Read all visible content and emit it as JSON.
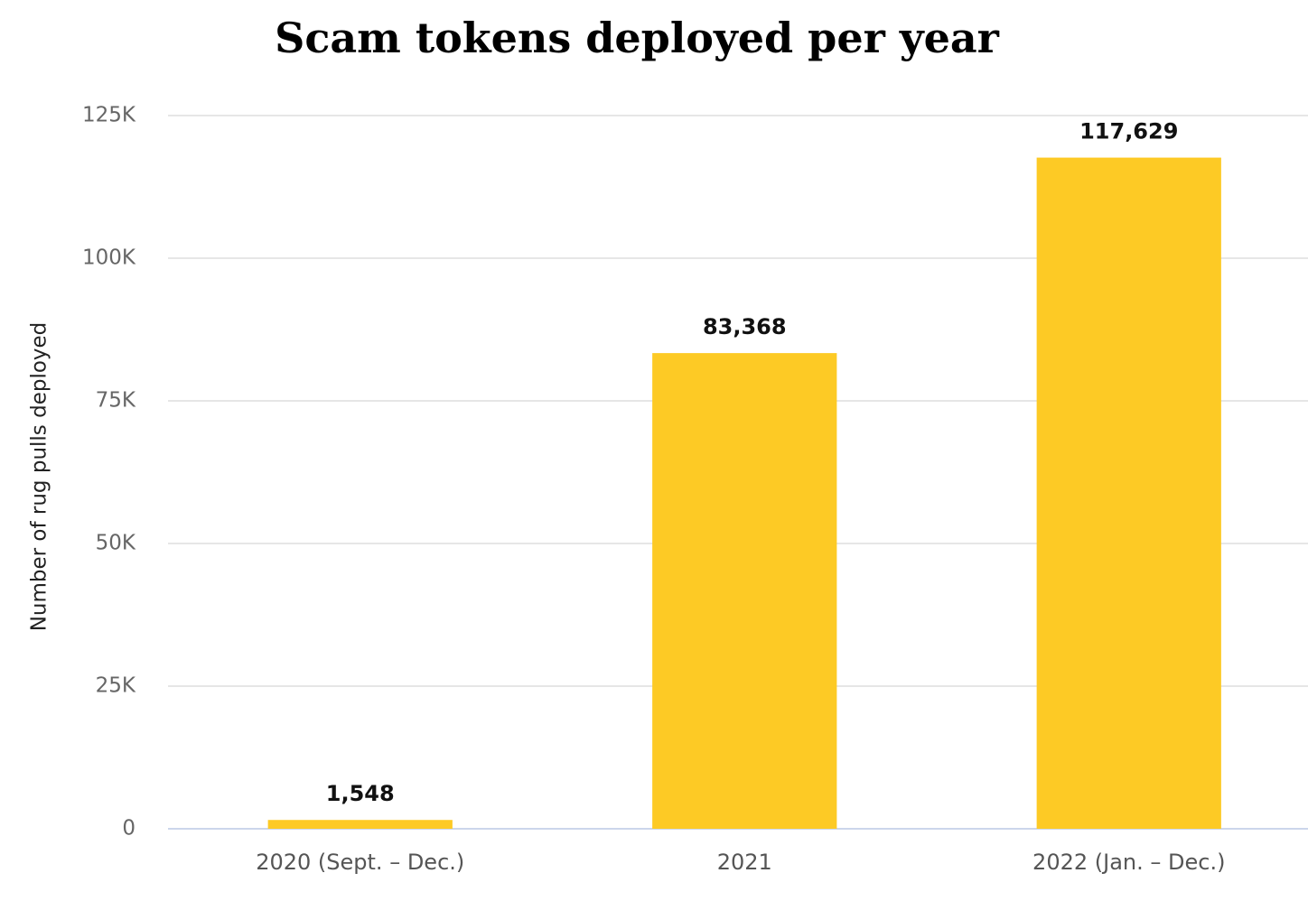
{
  "chart_data": {
    "type": "bar",
    "title": "Scam tokens deployed per year",
    "y_label": "Number of rug pulls deployed",
    "categories": [
      "2020 (Sept. – Dec.)",
      "2021",
      "2022 (Jan. – Dec.)"
    ],
    "values": [
      1548,
      83368,
      117629
    ],
    "value_labels": [
      "1,548",
      "83,368",
      "117,629"
    ],
    "color": "#fdca25",
    "ylim": [
      0,
      125000
    ],
    "yticks": [
      0,
      {
        "value": 25000,
        "label": "25K"
      },
      {
        "value": 50000,
        "label": "50K"
      },
      {
        "value": 75000,
        "label": "75K"
      },
      {
        "value": 100000,
        "label": "100K"
      },
      {
        "value": 125000,
        "label": "125K"
      }
    ],
    "grid": true
  }
}
